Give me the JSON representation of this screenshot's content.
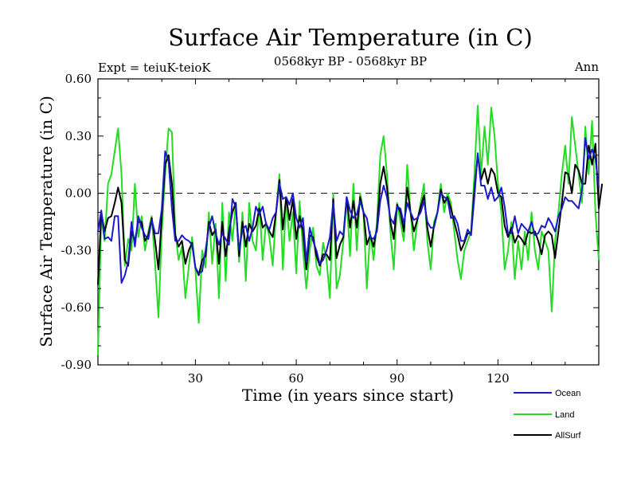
{
  "chart_data": {
    "type": "line",
    "title": "Surface Air Temperature (in C)",
    "subtitle": "0568kyr BP - 0568kyr BP",
    "left_label": "Expt = teiuK-teioK",
    "right_label": "Ann",
    "xlabel": "Time (in years since start)",
    "ylabel": "Surface Air Temperature (in C)",
    "xlim": [
      1,
      150
    ],
    "ylim": [
      -0.9,
      0.6
    ],
    "xticks": [
      30,
      60,
      90,
      120
    ],
    "xtick_labels": [
      "30",
      "60",
      "90",
      "120"
    ],
    "yticks": [
      0.6,
      0.3,
      0.0,
      -0.3,
      -0.6,
      -0.9
    ],
    "ytick_labels": [
      "0.60",
      "0.30",
      "0.00",
      "-0.30",
      "-0.60",
      "-0.90"
    ],
    "reference_line": 0.0,
    "legend_position": "bottom-right",
    "series": [
      {
        "name": "Ocean",
        "color": "#1a1acc",
        "values": [
          -0.2,
          -0.09,
          -0.24,
          -0.23,
          -0.25,
          -0.12,
          -0.12,
          -0.47,
          -0.43,
          -0.36,
          -0.15,
          -0.28,
          -0.12,
          -0.18,
          -0.22,
          -0.24,
          -0.14,
          -0.21,
          -0.21,
          -0.08,
          0.22,
          0.17,
          -0.08,
          -0.25,
          -0.25,
          -0.22,
          -0.24,
          -0.25,
          -0.27,
          -0.39,
          -0.42,
          -0.41,
          -0.3,
          -0.18,
          -0.12,
          -0.21,
          -0.27,
          -0.21,
          -0.24,
          -0.27,
          -0.03,
          -0.07,
          -0.3,
          -0.19,
          -0.17,
          -0.25,
          -0.18,
          -0.07,
          -0.11,
          -0.07,
          -0.16,
          -0.19,
          -0.13,
          -0.1,
          0.05,
          -0.03,
          -0.02,
          -0.06,
          0.0,
          -0.13,
          -0.18,
          -0.13,
          -0.36,
          -0.18,
          -0.25,
          -0.3,
          -0.37,
          -0.35,
          -0.3,
          -0.23,
          -0.05,
          -0.25,
          -0.2,
          -0.22,
          -0.02,
          -0.09,
          -0.13,
          -0.11,
          -0.04,
          -0.1,
          -0.13,
          -0.23,
          -0.24,
          -0.2,
          -0.04,
          0.04,
          -0.02,
          -0.13,
          -0.16,
          -0.07,
          -0.08,
          -0.16,
          -0.05,
          -0.1,
          -0.14,
          -0.13,
          -0.1,
          -0.04,
          -0.15,
          -0.18,
          -0.18,
          -0.1,
          0.0,
          -0.02,
          -0.03,
          -0.13,
          -0.12,
          -0.16,
          -0.25,
          -0.25,
          -0.19,
          -0.22,
          -0.02,
          0.21,
          0.04,
          0.04,
          -0.03,
          0.03,
          -0.04,
          -0.02,
          0.03,
          -0.07,
          -0.21,
          -0.21,
          -0.12,
          -0.21,
          -0.16,
          -0.18,
          -0.2,
          -0.15,
          -0.22,
          -0.21,
          -0.17,
          -0.18,
          -0.13,
          -0.16,
          -0.2,
          -0.12,
          -0.08,
          -0.02,
          -0.04,
          -0.04,
          -0.06,
          -0.08,
          0.02,
          0.29,
          0.18,
          0.23,
          0.18,
          0.03
        ]
      },
      {
        "name": "Land",
        "color": "#22dd22",
        "values": [
          -0.85,
          -0.12,
          -0.25,
          0.05,
          0.1,
          0.22,
          0.34,
          0.1,
          -0.38,
          -0.24,
          -0.3,
          0.05,
          -0.23,
          -0.12,
          -0.3,
          -0.2,
          -0.12,
          -0.37,
          -0.65,
          -0.2,
          0.1,
          0.34,
          0.32,
          -0.2,
          -0.35,
          -0.28,
          -0.55,
          -0.39,
          -0.23,
          -0.4,
          -0.68,
          -0.3,
          -0.39,
          -0.1,
          -0.37,
          -0.16,
          -0.55,
          -0.05,
          -0.46,
          -0.1,
          -0.25,
          -0.05,
          -0.36,
          -0.1,
          -0.46,
          -0.05,
          -0.25,
          -0.3,
          -0.05,
          -0.35,
          -0.15,
          -0.23,
          -0.38,
          -0.1,
          0.1,
          -0.4,
          -0.03,
          -0.25,
          -0.1,
          -0.42,
          -0.04,
          -0.3,
          -0.5,
          -0.3,
          -0.18,
          -0.38,
          -0.43,
          -0.26,
          -0.35,
          -0.55,
          0.0,
          -0.5,
          -0.43,
          -0.25,
          -0.03,
          -0.33,
          0.05,
          -0.3,
          0.0,
          -0.1,
          -0.5,
          -0.2,
          -0.35,
          -0.15,
          0.2,
          0.3,
          0.1,
          -0.2,
          -0.4,
          -0.05,
          -0.15,
          -0.25,
          0.15,
          -0.1,
          -0.3,
          -0.15,
          -0.05,
          0.05,
          -0.25,
          -0.4,
          -0.15,
          -0.1,
          0.05,
          -0.1,
          0.0,
          -0.05,
          -0.2,
          -0.35,
          -0.45,
          -0.3,
          -0.25,
          -0.2,
          0.1,
          0.46,
          0.1,
          0.35,
          0.15,
          0.45,
          0.3,
          0.05,
          -0.1,
          -0.4,
          -0.3,
          -0.15,
          -0.45,
          -0.25,
          -0.4,
          -0.2,
          -0.35,
          -0.1,
          -0.3,
          -0.4,
          -0.2,
          -0.25,
          -0.3,
          -0.62,
          -0.25,
          -0.1,
          0.1,
          0.25,
          0.05,
          0.4,
          0.25,
          0.1,
          -0.05,
          0.35,
          0.1,
          0.38,
          -0.1,
          -0.35
        ]
      },
      {
        "name": "AllSurf",
        "color": "#000000",
        "values": [
          -0.48,
          -0.1,
          -0.2,
          -0.13,
          -0.12,
          -0.05,
          0.03,
          -0.05,
          -0.35,
          -0.38,
          -0.2,
          -0.25,
          -0.15,
          -0.15,
          -0.25,
          -0.22,
          -0.13,
          -0.25,
          -0.4,
          -0.12,
          0.15,
          0.2,
          0.05,
          -0.22,
          -0.28,
          -0.25,
          -0.37,
          -0.3,
          -0.26,
          -0.39,
          -0.43,
          -0.35,
          -0.33,
          -0.15,
          -0.22,
          -0.19,
          -0.37,
          -0.15,
          -0.33,
          -0.2,
          -0.1,
          -0.05,
          -0.33,
          -0.15,
          -0.28,
          -0.16,
          -0.2,
          -0.17,
          -0.08,
          -0.18,
          -0.16,
          -0.2,
          -0.23,
          -0.1,
          0.07,
          -0.19,
          -0.02,
          -0.14,
          -0.03,
          -0.24,
          -0.12,
          -0.2,
          -0.4,
          -0.22,
          -0.23,
          -0.33,
          -0.38,
          -0.32,
          -0.32,
          -0.35,
          -0.03,
          -0.34,
          -0.27,
          -0.23,
          -0.02,
          -0.18,
          -0.04,
          -0.18,
          -0.02,
          -0.1,
          -0.27,
          -0.22,
          -0.28,
          -0.18,
          0.05,
          0.14,
          0.03,
          -0.15,
          -0.24,
          -0.06,
          -0.1,
          -0.2,
          0.03,
          -0.1,
          -0.2,
          -0.14,
          -0.07,
          -0.01,
          -0.18,
          -0.28,
          -0.17,
          -0.1,
          0.02,
          -0.05,
          -0.02,
          -0.08,
          -0.15,
          -0.22,
          -0.3,
          -0.26,
          -0.21,
          -0.21,
          0.02,
          0.2,
          0.07,
          0.13,
          0.05,
          0.13,
          0.1,
          0.0,
          -0.02,
          -0.17,
          -0.23,
          -0.18,
          -0.26,
          -0.22,
          -0.24,
          -0.27,
          -0.2,
          -0.21,
          -0.2,
          -0.25,
          -0.32,
          -0.22,
          -0.2,
          -0.22,
          -0.34,
          -0.2,
          -0.05,
          0.11,
          0.1,
          0.0,
          0.15,
          0.12,
          0.05,
          0.05,
          0.25,
          0.15,
          0.26,
          -0.08,
          0.05
        ]
      }
    ]
  }
}
